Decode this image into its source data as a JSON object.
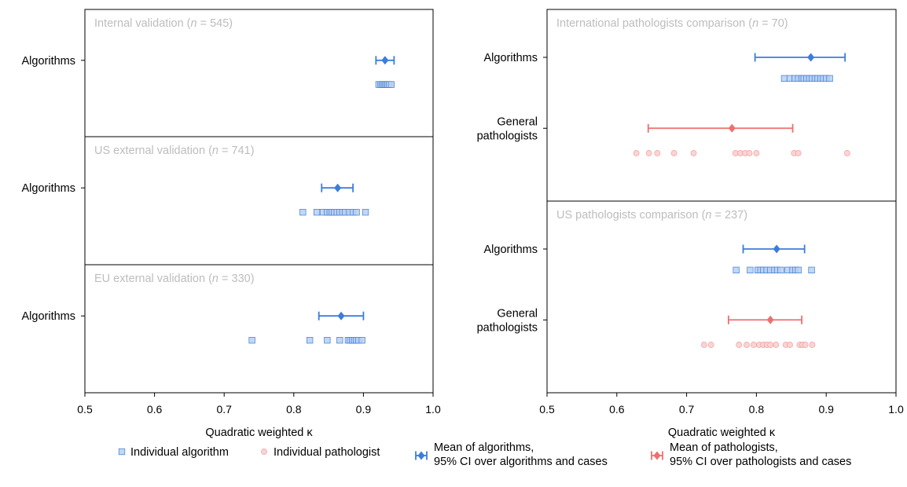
{
  "chart_data": [
    {
      "type": "scatter",
      "xlabel": "Quadratic weighted κ",
      "xlim": [
        0.5,
        1.0
      ],
      "xticks": [
        "0.5",
        "0.6",
        "0.7",
        "0.8",
        "0.9",
        "1.0"
      ],
      "panels": [
        {
          "title": "Internal validation (",
          "n_var": "n",
          "n_text": " = 545)",
          "rows": [
            {
              "label": [
                "Algorithms"
              ],
              "group": "algorithms",
              "mean": 0.931,
              "ci": [
                0.918,
                0.944
              ],
              "individuals": [
                0.922,
                0.925,
                0.927,
                0.929,
                0.931,
                0.933,
                0.935,
                0.937,
                0.94
              ]
            }
          ]
        },
        {
          "title": "US external validation (",
          "n_var": "n",
          "n_text": " = 741)",
          "rows": [
            {
              "label": [
                "Algorithms"
              ],
              "group": "algorithms",
              "mean": 0.863,
              "ci": [
                0.84,
                0.885
              ],
              "individuals": [
                0.813,
                0.833,
                0.842,
                0.848,
                0.852,
                0.855,
                0.858,
                0.862,
                0.866,
                0.87,
                0.874,
                0.88,
                0.885,
                0.89,
                0.903
              ]
            }
          ]
        },
        {
          "title": "EU external validation (",
          "n_var": "n",
          "n_text": " = 330)",
          "rows": [
            {
              "label": [
                "Algorithms"
              ],
              "group": "algorithms",
              "mean": 0.868,
              "ci": [
                0.836,
                0.9
              ],
              "individuals": [
                0.74,
                0.823,
                0.848,
                0.866,
                0.878,
                0.881,
                0.884,
                0.887,
                0.89,
                0.893,
                0.898
              ]
            }
          ]
        }
      ]
    },
    {
      "type": "scatter",
      "xlabel": "Quadratic weighted κ",
      "xlim": [
        0.5,
        1.0
      ],
      "xticks": [
        "0.5",
        "0.6",
        "0.7",
        "0.8",
        "0.9",
        "1.0"
      ],
      "panels": [
        {
          "title": "International pathologists comparison (",
          "n_var": "n",
          "n_text": " = 70)",
          "rows": [
            {
              "label": [
                "Algorithms"
              ],
              "group": "algorithms",
              "mean": 0.878,
              "ci": [
                0.798,
                0.927
              ],
              "individuals": [
                0.84,
                0.848,
                0.855,
                0.86,
                0.865,
                0.868,
                0.872,
                0.876,
                0.88,
                0.884,
                0.888,
                0.892,
                0.896,
                0.9,
                0.905
              ]
            },
            {
              "label": [
                "General",
                "pathologists"
              ],
              "group": "pathologists",
              "mean": 0.765,
              "ci": [
                0.645,
                0.852
              ],
              "individuals": [
                0.628,
                0.646,
                0.658,
                0.682,
                0.71,
                0.77,
                0.777,
                0.784,
                0.79,
                0.8,
                0.854,
                0.86,
                0.93
              ]
            }
          ]
        },
        {
          "title": "US pathologists comparison (",
          "n_var": "n",
          "n_text": " = 237)",
          "rows": [
            {
              "label": [
                "Algorithms"
              ],
              "group": "algorithms",
              "mean": 0.829,
              "ci": [
                0.781,
                0.869
              ],
              "individuals": [
                0.771,
                0.791,
                0.802,
                0.806,
                0.81,
                0.815,
                0.82,
                0.826,
                0.83,
                0.835,
                0.845,
                0.852,
                0.856,
                0.86,
                0.879
              ]
            },
            {
              "label": [
                "General",
                "pathologists"
              ],
              "group": "pathologists",
              "mean": 0.82,
              "ci": [
                0.76,
                0.865
              ],
              "individuals": [
                0.725,
                0.735,
                0.775,
                0.786,
                0.796,
                0.804,
                0.81,
                0.815,
                0.82,
                0.828,
                0.842,
                0.848,
                0.862,
                0.866,
                0.87,
                0.88
              ]
            }
          ]
        }
      ]
    }
  ],
  "colors": {
    "algorithms": "#3b7ddd",
    "algorithms_marker_fill": "#b9d0f0",
    "pathologists": "#ef6f6f",
    "pathologists_marker_fill": "#fbd4d4",
    "panel_title": "#bdbdbd"
  },
  "legend": {
    "items": [
      {
        "marker": "square",
        "group": "algorithms",
        "lines": [
          "Individual algorithm"
        ]
      },
      {
        "marker": "circle",
        "group": "pathologists",
        "lines": [
          "Individual pathologist"
        ]
      },
      {
        "marker": "mean-ci",
        "group": "algorithms",
        "lines": [
          "Mean of algorithms,",
          "95% CI over algorithms and cases"
        ]
      },
      {
        "marker": "mean-ci",
        "group": "pathologists",
        "lines": [
          "Mean of pathologists,",
          "95% CI over pathologists and cases"
        ]
      }
    ]
  }
}
